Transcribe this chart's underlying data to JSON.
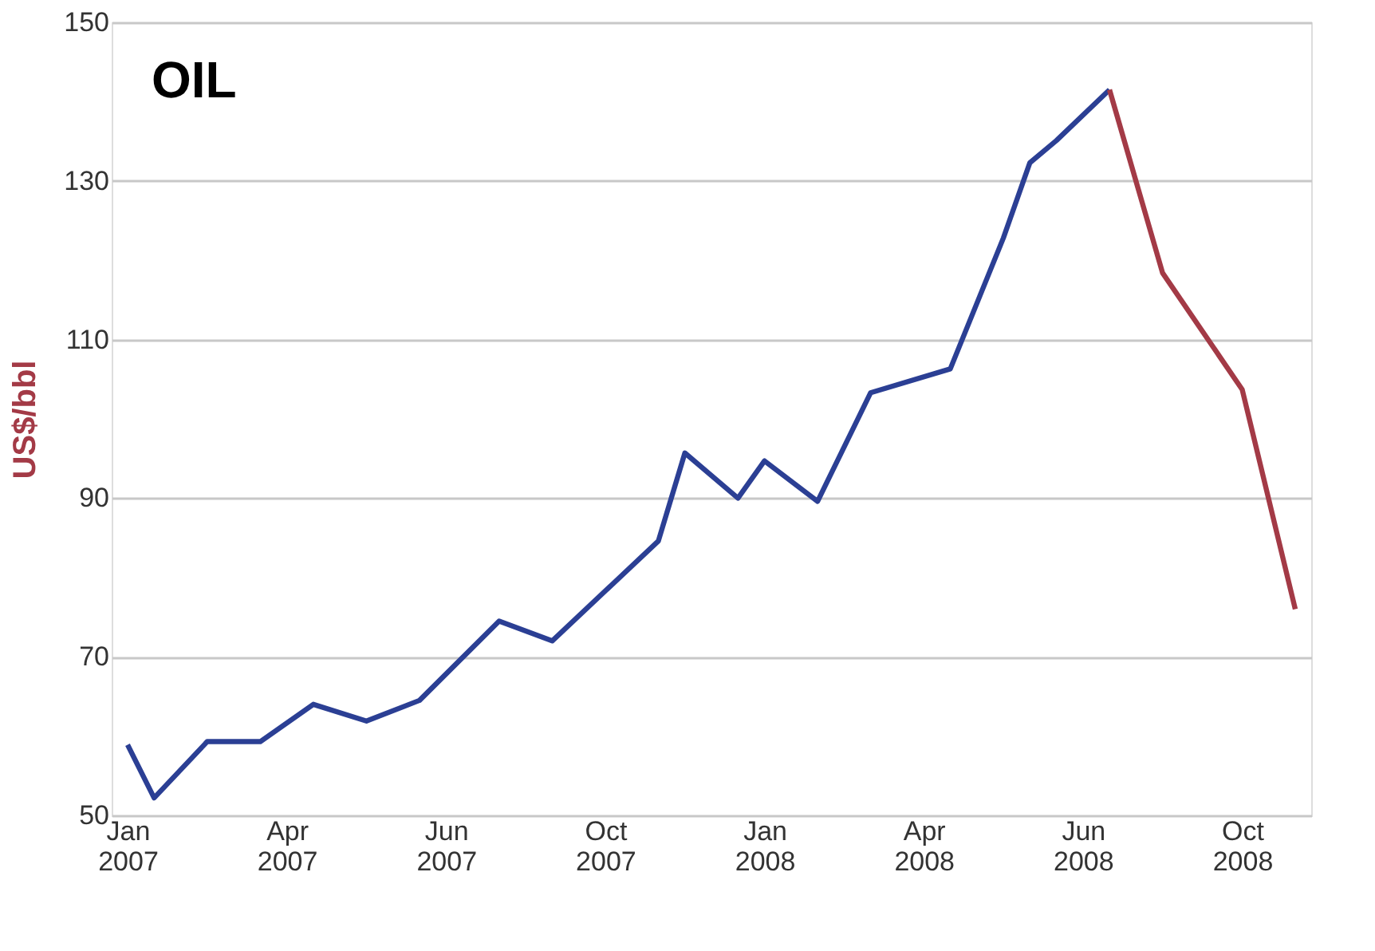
{
  "chart_data": {
    "type": "line",
    "title": "OIL",
    "ylabel": "US$/bbl",
    "categories": [
      "Jan 2007",
      null,
      null,
      null,
      null,
      null,
      "Apr 2007",
      null,
      null,
      null,
      null,
      null,
      "Jun 2007",
      null,
      null,
      null,
      null,
      null,
      "Oct 2007",
      null,
      null,
      null,
      null,
      null,
      "Jan 2008",
      null,
      null,
      null,
      null,
      null,
      "Apr 2008",
      null,
      null,
      null,
      null,
      null,
      "Jun 2008",
      null,
      null,
      null,
      null,
      null,
      "Oct 2008",
      null,
      null
    ],
    "ylim": [
      50,
      150
    ],
    "yticks": [
      50,
      70,
      90,
      110,
      130,
      150
    ],
    "grid": "y",
    "marker": "none",
    "line_style": "solid",
    "series": [
      {
        "color": "#2b3f94",
        "values": [
          58.9,
          52.2,
          null,
          59.3,
          null,
          59.3,
          null,
          64,
          null,
          61.9,
          null,
          64.5,
          null,
          null,
          74.5,
          null,
          72,
          null,
          null,
          null,
          84.6,
          95.7,
          null,
          90,
          94.7,
          null,
          89.6,
          null,
          103.3,
          null,
          null,
          106.3,
          null,
          122.8,
          132.3,
          135.1,
          null,
          141.5,
          null,
          null,
          null,
          null,
          null,
          null,
          null
        ]
      },
      {
        "color": "#a33a46",
        "values": [
          null,
          null,
          null,
          null,
          null,
          null,
          null,
          null,
          null,
          null,
          null,
          null,
          null,
          null,
          null,
          null,
          null,
          null,
          null,
          null,
          null,
          null,
          null,
          null,
          null,
          null,
          null,
          null,
          null,
          null,
          null,
          null,
          null,
          null,
          null,
          null,
          null,
          141.5,
          null,
          118.4,
          null,
          null,
          103.7,
          null,
          76
        ]
      }
    ]
  }
}
